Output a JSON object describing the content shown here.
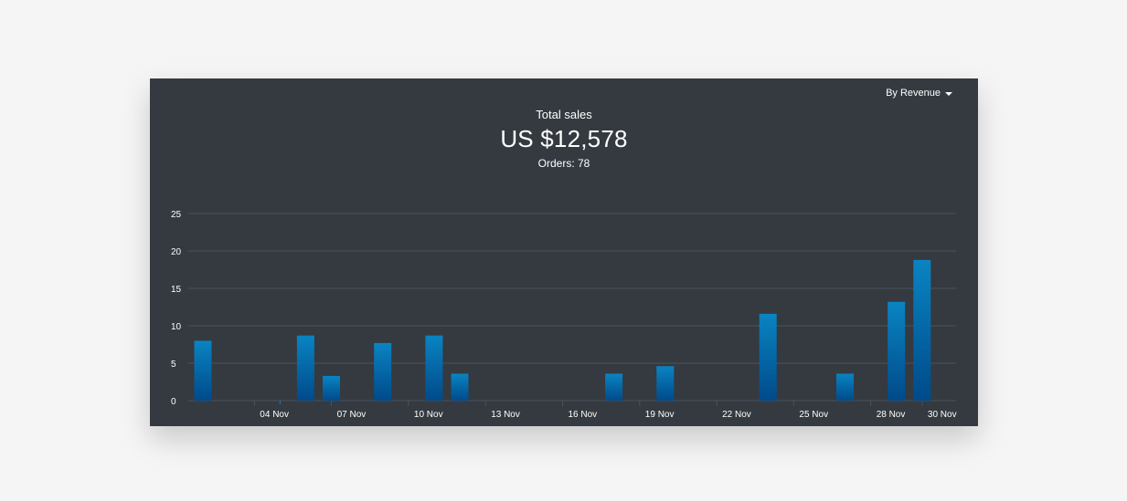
{
  "header": {
    "dropdown_label": "By Revenue"
  },
  "summary": {
    "label": "Total sales",
    "amount": "US $12,578",
    "orders_label": "Orders:",
    "orders_value": "78"
  },
  "colors": {
    "card_bg": "#343a40",
    "bar_top": "#0a84c2",
    "bar_bottom": "#004a8a",
    "grid": "#4b525a",
    "axis_text": "#ffffff"
  },
  "chart_data": {
    "type": "bar",
    "y_ticks": [
      0,
      5,
      10,
      15,
      20,
      25
    ],
    "ylim": [
      0,
      25
    ],
    "x_start_day": 1,
    "x_end_day": 30,
    "x_tick_labels": [
      {
        "day": 4,
        "label": "04 Nov"
      },
      {
        "day": 7,
        "label": "07 Nov"
      },
      {
        "day": 10,
        "label": "10 Nov"
      },
      {
        "day": 13,
        "label": "13 Nov"
      },
      {
        "day": 16,
        "label": "16 Nov"
      },
      {
        "day": 19,
        "label": "19 Nov"
      },
      {
        "day": 22,
        "label": "22 Nov"
      },
      {
        "day": 25,
        "label": "25 Nov"
      },
      {
        "day": 28,
        "label": "28 Nov"
      },
      {
        "day": 30,
        "label": "30 Nov"
      }
    ],
    "bars": [
      {
        "day": 1,
        "value": 8
      },
      {
        "day": 4,
        "value": 0
      },
      {
        "day": 5,
        "value": 8.7
      },
      {
        "day": 6,
        "value": 3.3
      },
      {
        "day": 8,
        "value": 7.7
      },
      {
        "day": 10,
        "value": 8.7
      },
      {
        "day": 11,
        "value": 3.6
      },
      {
        "day": 17,
        "value": 3.6
      },
      {
        "day": 19,
        "value": 4.6
      },
      {
        "day": 23,
        "value": 11.6
      },
      {
        "day": 26,
        "value": 3.6
      },
      {
        "day": 28,
        "value": 13.2
      },
      {
        "day": 29,
        "value": 18.8
      }
    ]
  }
}
